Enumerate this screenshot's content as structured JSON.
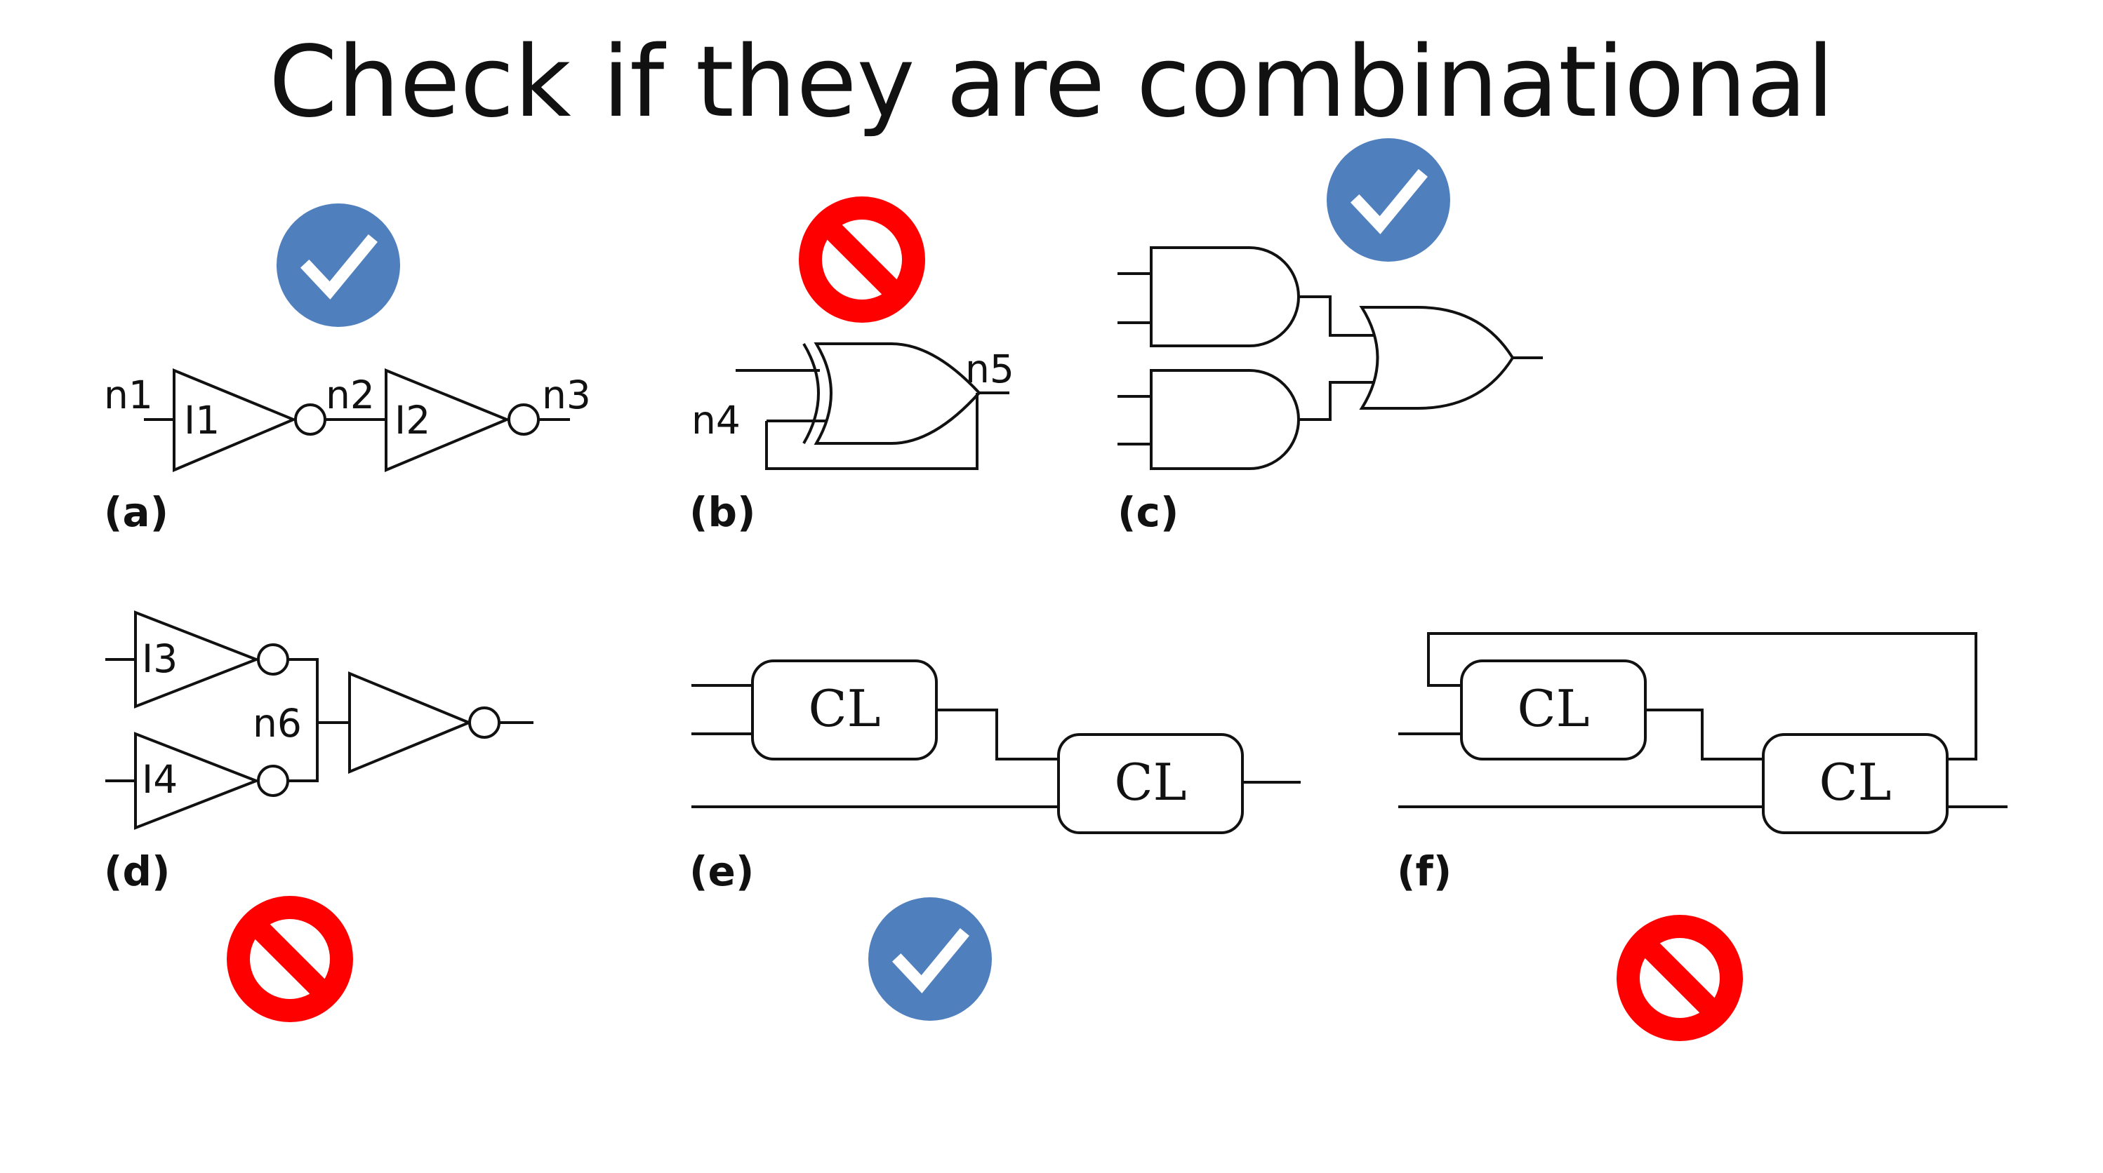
{
  "title": "Check if they are combinational",
  "colors": {
    "check_badge": "#4f7fbd",
    "no_badge": "#ff0000",
    "line": "#111111"
  },
  "circuits": {
    "a": {
      "caption": "(a)",
      "verdict": "check-icon",
      "labels": {
        "n1": "n1",
        "n2": "n2",
        "n3": "n3",
        "i1": "I1",
        "i2": "I2"
      }
    },
    "b": {
      "caption": "(b)",
      "verdict": "no-icon",
      "labels": {
        "n4": "n4",
        "n5": "n5"
      }
    },
    "c": {
      "caption": "(c)",
      "verdict": "check-icon"
    },
    "d": {
      "caption": "(d)",
      "verdict": "no-icon",
      "labels": {
        "i3": "I3",
        "i4": "I4",
        "n6": "n6"
      }
    },
    "e": {
      "caption": "(e)",
      "verdict": "check-icon",
      "block_label": "CL"
    },
    "f": {
      "caption": "(f)",
      "verdict": "no-icon",
      "block_label": "CL"
    }
  }
}
